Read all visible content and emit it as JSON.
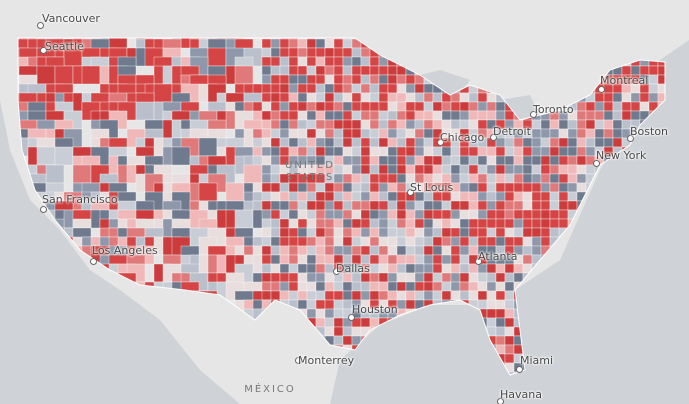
{
  "cities": [
    "Vancouver",
    "Seattle",
    "San Francisco",
    "Los Angeles",
    "Chicago",
    "Detroit",
    "Toronto",
    "Montreal",
    "Boston",
    "New York",
    "St Louis",
    "Atlanta",
    "Dallas",
    "Houston",
    "Monterrey",
    "Miami",
    "Havana"
  ],
  "countries": [
    "UNITED STATES",
    "MÉXICO"
  ]
}
